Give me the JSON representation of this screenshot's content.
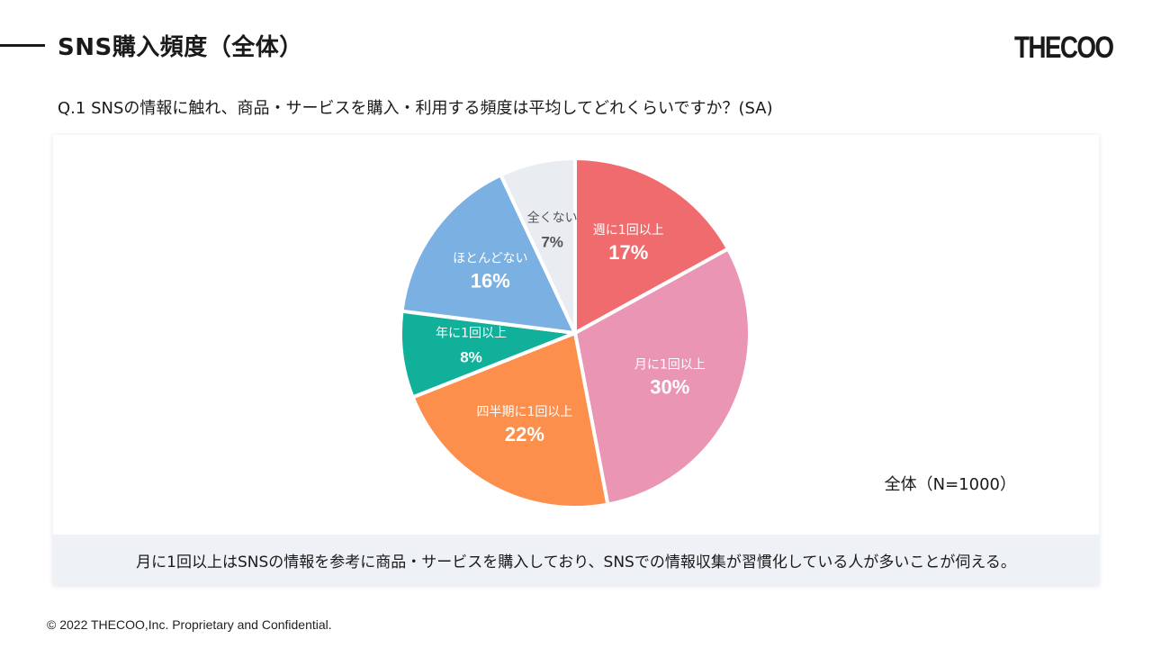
{
  "header": {
    "title": "SNS購入頻度（全体）",
    "logo_text": "THECOO"
  },
  "question": "Q.1 SNSの情報に触れ、商品・サービスを購入・利用する頻度は平均してどれくらいですか？(SA)",
  "chart_data": {
    "type": "pie",
    "sample_label": "全体（N=1000）",
    "start_angle": "12 o'clock, clockwise",
    "slices": [
      {
        "label": "週に1回以上",
        "value": 17,
        "value_label": "17%",
        "color": "#f06b6d"
      },
      {
        "label": "月に1回以上",
        "value": 30,
        "value_label": "30%",
        "color": "#ea95b3"
      },
      {
        "label": "四半期に1回以上",
        "value": 22,
        "value_label": "22%",
        "color": "#fb8f4b"
      },
      {
        "label": "年に1回以上",
        "value": 8,
        "value_label": "8%",
        "color": "#10b09a"
      },
      {
        "label": "ほとんどない",
        "value": 16,
        "value_label": "16%",
        "color": "#7ab0e2"
      },
      {
        "label": "全くない",
        "value": 7,
        "value_label": "7%",
        "color": "#e9edf2",
        "text_color": "#555555"
      }
    ]
  },
  "summary": "月に1回以上はSNSの情報を参考に商品・サービスを購入しており、SNSでの情報収集が習慣化している人が多いことが伺える。",
  "footer": "© 2022 THECOO,Inc. Proprietary and Confidential."
}
